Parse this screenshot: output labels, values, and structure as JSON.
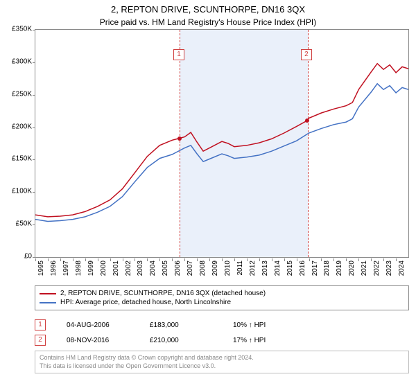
{
  "title_line1": "2, REPTON DRIVE, SCUNTHORPE, DN16 3QX",
  "title_line2": "Price paid vs. HM Land Registry's House Price Index (HPI)",
  "chart": {
    "type": "line",
    "background_color": "#ffffff",
    "border_color": "#888888",
    "shade_band_color": "#eaf0fa",
    "shade_border_color": "#d04040",
    "dash_color": "#d04040",
    "ylim": [
      0,
      350000
    ],
    "ytick_step": 50000,
    "yticks": [
      {
        "v": 0,
        "label": "£0"
      },
      {
        "v": 50000,
        "label": "£50K"
      },
      {
        "v": 100000,
        "label": "£100K"
      },
      {
        "v": 150000,
        "label": "£150K"
      },
      {
        "v": 200000,
        "label": "£200K"
      },
      {
        "v": 250000,
        "label": "£250K"
      },
      {
        "v": 300000,
        "label": "£300K"
      },
      {
        "v": 350000,
        "label": "£350K"
      }
    ],
    "xlim": [
      1995,
      2025
    ],
    "xticks": [
      "1995",
      "1996",
      "1997",
      "1998",
      "1999",
      "2000",
      "2001",
      "2002",
      "2003",
      "2004",
      "2005",
      "2006",
      "2007",
      "2008",
      "2009",
      "2010",
      "2011",
      "2012",
      "2013",
      "2014",
      "2015",
      "2016",
      "2017",
      "2018",
      "2019",
      "2020",
      "2021",
      "2022",
      "2023",
      "2024"
    ],
    "xtick_rotation": -90,
    "axis_fontsize": 10,
    "line_width": 1.5,
    "series": [
      {
        "name": "property",
        "color": "#c01020",
        "label": "2, REPTON DRIVE, SCUNTHORPE, DN16 3QX (detached house)",
        "data": [
          [
            1995,
            65000
          ],
          [
            1996,
            62000
          ],
          [
            1997,
            63000
          ],
          [
            1998,
            65000
          ],
          [
            1999,
            70000
          ],
          [
            2000,
            78000
          ],
          [
            2001,
            88000
          ],
          [
            2002,
            105000
          ],
          [
            2003,
            130000
          ],
          [
            2004,
            155000
          ],
          [
            2005,
            172000
          ],
          [
            2006,
            180000
          ],
          [
            2006.6,
            183000
          ],
          [
            2007,
            185000
          ],
          [
            2007.5,
            192000
          ],
          [
            2008,
            177000
          ],
          [
            2008.5,
            163000
          ],
          [
            2009,
            168000
          ],
          [
            2010,
            178000
          ],
          [
            2010.5,
            175000
          ],
          [
            2011,
            170000
          ],
          [
            2012,
            172000
          ],
          [
            2013,
            176000
          ],
          [
            2014,
            182000
          ],
          [
            2015,
            191000
          ],
          [
            2016,
            201000
          ],
          [
            2016.85,
            210000
          ],
          [
            2017,
            214000
          ],
          [
            2018,
            222000
          ],
          [
            2019,
            228000
          ],
          [
            2020,
            233000
          ],
          [
            2020.5,
            238000
          ],
          [
            2021,
            258000
          ],
          [
            2022,
            285000
          ],
          [
            2022.5,
            298000
          ],
          [
            2023,
            289000
          ],
          [
            2023.5,
            296000
          ],
          [
            2024,
            284000
          ],
          [
            2024.5,
            293000
          ],
          [
            2025,
            290000
          ]
        ]
      },
      {
        "name": "hpi",
        "color": "#4472c4",
        "label": "HPI: Average price, detached house, North Lincolnshire",
        "data": [
          [
            1995,
            58000
          ],
          [
            1996,
            55000
          ],
          [
            1997,
            56000
          ],
          [
            1998,
            58000
          ],
          [
            1999,
            62000
          ],
          [
            2000,
            69000
          ],
          [
            2001,
            78000
          ],
          [
            2002,
            93000
          ],
          [
            2003,
            116000
          ],
          [
            2004,
            138000
          ],
          [
            2005,
            152000
          ],
          [
            2006,
            158000
          ],
          [
            2007,
            168000
          ],
          [
            2007.5,
            172000
          ],
          [
            2008,
            159000
          ],
          [
            2008.5,
            147000
          ],
          [
            2009,
            151000
          ],
          [
            2010,
            159000
          ],
          [
            2010.5,
            156000
          ],
          [
            2011,
            152000
          ],
          [
            2012,
            154000
          ],
          [
            2013,
            157000
          ],
          [
            2014,
            163000
          ],
          [
            2015,
            171000
          ],
          [
            2016,
            179000
          ],
          [
            2017,
            191000
          ],
          [
            2018,
            198000
          ],
          [
            2019,
            204000
          ],
          [
            2020,
            208000
          ],
          [
            2020.5,
            213000
          ],
          [
            2021,
            231000
          ],
          [
            2022,
            254000
          ],
          [
            2022.5,
            267000
          ],
          [
            2023,
            258000
          ],
          [
            2023.5,
            264000
          ],
          [
            2024,
            253000
          ],
          [
            2024.5,
            261000
          ],
          [
            2025,
            258000
          ]
        ]
      }
    ],
    "shaded_band": {
      "from": 2006.6,
      "to": 2016.85
    },
    "markers": [
      {
        "id": "1",
        "x": 2006.6,
        "y": 183000,
        "box_x": 2006.1,
        "box_y": 320000
      },
      {
        "id": "2",
        "x": 2016.85,
        "y": 210000,
        "box_x": 2016.35,
        "box_y": 320000
      }
    ]
  },
  "legend": {
    "border_color": "#888888",
    "fontsize": 10
  },
  "transactions": [
    {
      "marker": "1",
      "date": "04-AUG-2006",
      "price": "£183,000",
      "delta": "10% ↑ HPI"
    },
    {
      "marker": "2",
      "date": "08-NOV-2016",
      "price": "£210,000",
      "delta": "17% ↑ HPI"
    }
  ],
  "footer": {
    "line1": "Contains HM Land Registry data © Crown copyright and database right 2024.",
    "line2": "This data is licensed under the Open Government Licence v3.0.",
    "color": "#888888",
    "border_color": "#bbbbbb",
    "fontsize": 9
  }
}
